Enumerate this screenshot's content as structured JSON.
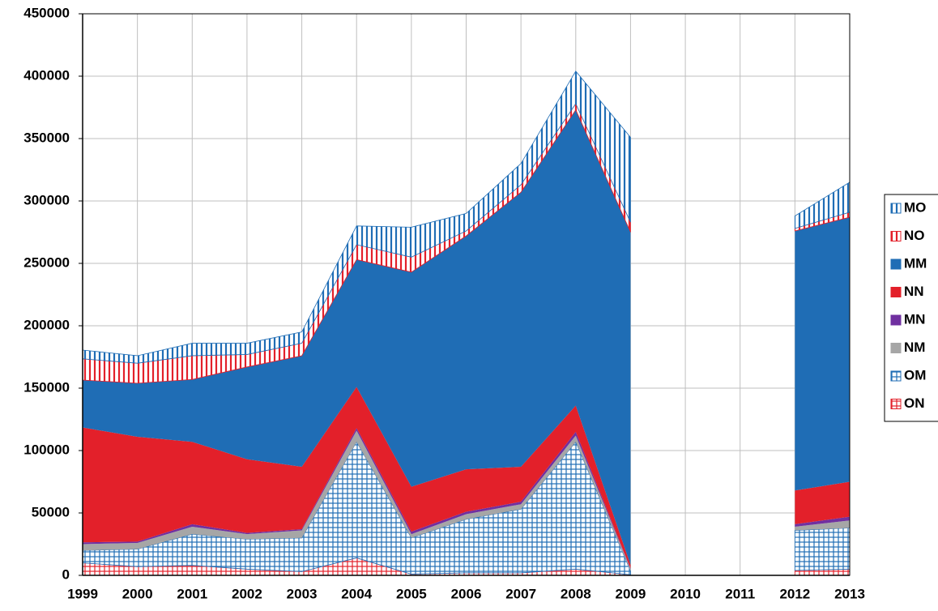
{
  "chart_data": {
    "type": "stacked-area",
    "categories": [
      "1999",
      "2000",
      "2001",
      "2002",
      "2003",
      "2004",
      "2005",
      "2006",
      "2007",
      "2008",
      "2009",
      "2010",
      "2011",
      "2012",
      "2013"
    ],
    "ylim": [
      0,
      450000
    ],
    "yticks": [
      0,
      50000,
      100000,
      150000,
      200000,
      250000,
      300000,
      350000,
      400000,
      450000
    ],
    "grid": true,
    "legend": "right",
    "series": [
      {
        "name": "ON",
        "color": "#e3202a",
        "fill": "grid",
        "values": [
          10000,
          7000,
          8000,
          5000,
          3000,
          14000,
          1000,
          2000,
          2000,
          5000,
          500,
          null,
          null,
          4000,
          5000
        ]
      },
      {
        "name": "OM",
        "color": "#1f6db5",
        "fill": "grid",
        "values": [
          10000,
          14000,
          25000,
          24000,
          27000,
          93000,
          29000,
          43000,
          51000,
          102000,
          3000,
          null,
          null,
          32000,
          33000
        ]
      },
      {
        "name": "NM",
        "color": "#a6a6a6",
        "fill": "solid",
        "values": [
          5000,
          5000,
          6000,
          4000,
          6000,
          9000,
          3000,
          4000,
          4000,
          5000,
          1500,
          null,
          null,
          3000,
          6000
        ]
      },
      {
        "name": "MN",
        "color": "#7030a0",
        "fill": "solid",
        "values": [
          1500,
          1000,
          2000,
          1000,
          1000,
          2000,
          2000,
          2000,
          2000,
          3000,
          500,
          null,
          null,
          2000,
          3000
        ]
      },
      {
        "name": "NN",
        "color": "#e3202a",
        "fill": "solid",
        "values": [
          92000,
          84000,
          66000,
          59000,
          50000,
          33000,
          36000,
          34000,
          28000,
          21000,
          3000,
          null,
          null,
          27000,
          28000
        ]
      },
      {
        "name": "MM",
        "color": "#1f6db5",
        "fill": "solid",
        "values": [
          38000,
          43000,
          50000,
          74000,
          89000,
          102000,
          172000,
          187000,
          220000,
          237000,
          266500,
          null,
          null,
          208000,
          212000
        ]
      },
      {
        "name": "NO",
        "color": "#e3202a",
        "fill": "stripes",
        "values": [
          17000,
          16000,
          19000,
          10000,
          10000,
          12000,
          12000,
          4000,
          6000,
          5000,
          8000,
          null,
          null,
          2000,
          4000
        ]
      },
      {
        "name": "MO",
        "color": "#1f6db5",
        "fill": "stripes",
        "values": [
          7000,
          6000,
          10000,
          9000,
          9000,
          15000,
          24000,
          14000,
          17000,
          26000,
          68000,
          null,
          null,
          10000,
          24000
        ]
      }
    ]
  }
}
